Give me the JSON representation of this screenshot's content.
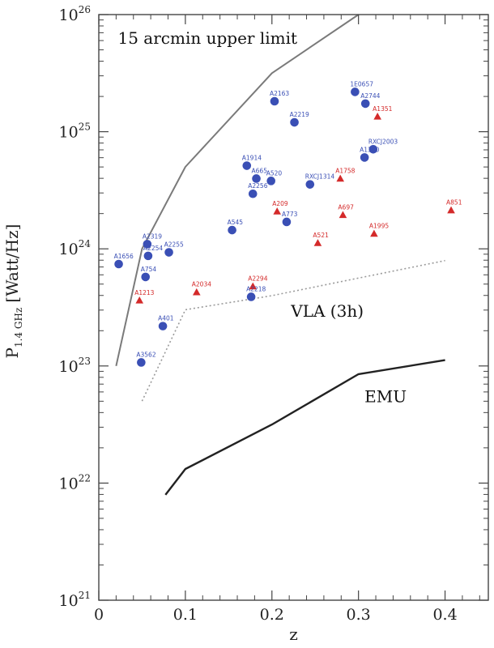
{
  "chart_data": {
    "type": "scatter",
    "xlabel": "z",
    "ylabel_main": "P",
    "ylabel_sub": "1.4 GHz",
    "ylabel_unit": "[Watt/Hz]",
    "xlim": [
      0,
      0.45
    ],
    "ylim_exp": [
      21,
      26
    ],
    "y_log_scale": true,
    "x_ticks": [
      0,
      0.1,
      0.2,
      0.3,
      0.4
    ],
    "x_tick_labels": [
      "0",
      "0.1",
      "0.2",
      "0.3",
      "0.4"
    ],
    "y_ticks_exp": [
      21,
      22,
      23,
      24,
      25,
      26
    ],
    "y_tick_base": "10",
    "y_tick_exps": [
      "21",
      "22",
      "23",
      "24",
      "25",
      "26"
    ],
    "colors": {
      "circle": "#3a4fb5",
      "triangle": "#d42a2a",
      "limit": "#7a7a7a",
      "emu": "#222222",
      "vla": "#9a9a9a"
    },
    "lines": [
      {
        "name": "15 arcmin upper limit",
        "style": "solid-gray",
        "points": [
          [
            0.02,
            23.0
          ],
          [
            0.05,
            24.0
          ],
          [
            0.1,
            24.7
          ],
          [
            0.2,
            25.5
          ],
          [
            0.3,
            26.0
          ]
        ]
      },
      {
        "name": "VLA (3h)",
        "style": "dotted",
        "points": [
          [
            0.05,
            22.7
          ],
          [
            0.1,
            23.48
          ],
          [
            0.2,
            23.6
          ],
          [
            0.3,
            23.75
          ],
          [
            0.4,
            23.9
          ]
        ]
      },
      {
        "name": "EMU",
        "style": "solid-dark",
        "points": [
          [
            0.077,
            21.9
          ],
          [
            0.1,
            22.12
          ],
          [
            0.2,
            22.5
          ],
          [
            0.3,
            22.93
          ],
          [
            0.4,
            23.05
          ]
        ]
      }
    ],
    "annotations": [
      {
        "text": "15 arcmin upper limit",
        "x": 0.022,
        "y": 25.75
      },
      {
        "text": "VLA (3h)",
        "x": 0.222,
        "y": 23.42
      },
      {
        "text": "EMU",
        "x": 0.307,
        "y": 22.69
      }
    ],
    "circles": [
      {
        "label": "A1656",
        "x": 0.023,
        "y": 23.87
      },
      {
        "label": "A2319",
        "x": 0.056,
        "y": 24.04
      },
      {
        "label": "A3562",
        "x": 0.049,
        "y": 23.03
      },
      {
        "label": "A2254",
        "x": 0.057,
        "y": 23.94
      },
      {
        "label": "A754",
        "x": 0.054,
        "y": 23.76
      },
      {
        "label": "A2255",
        "x": 0.081,
        "y": 23.97
      },
      {
        "label": "A401",
        "x": 0.074,
        "y": 23.34
      },
      {
        "label": "A545",
        "x": 0.154,
        "y": 24.16
      },
      {
        "label": "A1914",
        "x": 0.171,
        "y": 24.71
      },
      {
        "label": "A665",
        "x": 0.182,
        "y": 24.6
      },
      {
        "label": "A520",
        "x": 0.199,
        "y": 24.58
      },
      {
        "label": "A2256",
        "x": 0.178,
        "y": 24.47
      },
      {
        "label": "A2163",
        "x": 0.203,
        "y": 25.26
      },
      {
        "label": "A2219",
        "x": 0.226,
        "y": 25.08
      },
      {
        "label": "RXCJ1314",
        "x": 0.244,
        "y": 24.55
      },
      {
        "label": "A773",
        "x": 0.217,
        "y": 24.23
      },
      {
        "label": "A2218",
        "x": 0.176,
        "y": 23.59
      },
      {
        "label": "1E0657",
        "x": 0.296,
        "y": 25.34
      },
      {
        "label": "A2744",
        "x": 0.308,
        "y": 25.24
      },
      {
        "label": "RXCJ2003",
        "x": 0.317,
        "y": 24.85
      },
      {
        "label": "A1300",
        "x": 0.307,
        "y": 24.78
      }
    ],
    "triangles": [
      {
        "label": "A1213",
        "x": 0.047,
        "y": 23.56
      },
      {
        "label": "A2034",
        "x": 0.113,
        "y": 23.63
      },
      {
        "label": "A2294",
        "x": 0.178,
        "y": 23.68
      },
      {
        "label": "A209",
        "x": 0.206,
        "y": 24.32
      },
      {
        "label": "A521",
        "x": 0.253,
        "y": 24.05
      },
      {
        "label": "A1758",
        "x": 0.279,
        "y": 24.6
      },
      {
        "label": "A697",
        "x": 0.282,
        "y": 24.29
      },
      {
        "label": "A1995",
        "x": 0.318,
        "y": 24.13
      },
      {
        "label": "A851",
        "x": 0.407,
        "y": 24.33
      },
      {
        "label": "A1351",
        "x": 0.322,
        "y": 25.13
      }
    ]
  }
}
